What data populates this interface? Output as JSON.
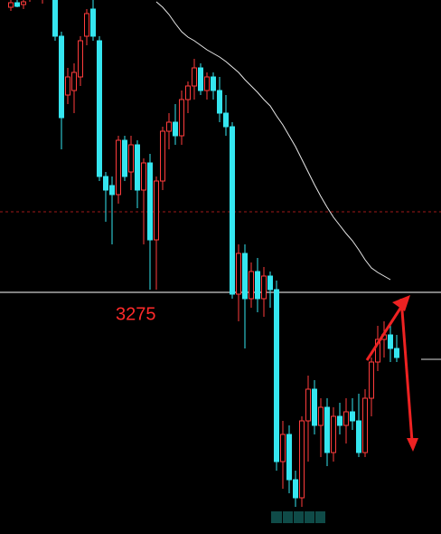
{
  "chart_data": {
    "type": "candlestick",
    "ylim": [
      3008,
      3598
    ],
    "up_color": "#ff3c3c",
    "down_color": "#35e6f0",
    "ma_color": "#e8e8e8",
    "reference_lines": [
      3275
    ],
    "reference_color": "#ffffff",
    "reference_label_color": "#ff2a2a",
    "dashed_level": 3364,
    "dashed_color": "#a01818",
    "ohlc": [
      [
        3590,
        3598,
        3586,
        3595
      ],
      [
        3595,
        3598,
        3590,
        3591
      ],
      [
        3593,
        3598,
        3588,
        3596
      ],
      [
        3603,
        3613,
        3596,
        3610
      ],
      [
        3610,
        3618,
        3600,
        3602
      ],
      [
        3602,
        3612,
        3594,
        3608
      ],
      [
        3608,
        3616,
        3598,
        3600
      ],
      [
        3600,
        3606,
        3553,
        3558
      ],
      [
        3558,
        3563,
        3433,
        3468
      ],
      [
        3493,
        3523,
        3483,
        3513
      ],
      [
        3498,
        3528,
        3473,
        3518
      ],
      [
        3513,
        3558,
        3503,
        3553
      ],
      [
        3558,
        3588,
        3548,
        3583
      ],
      [
        3588,
        3598,
        3553,
        3558
      ],
      [
        3553,
        3558,
        3398,
        3403
      ],
      [
        3403,
        3408,
        3353,
        3388
      ],
      [
        3393,
        3403,
        3328,
        3383
      ],
      [
        3383,
        3448,
        3373,
        3443
      ],
      [
        3443,
        3448,
        3398,
        3403
      ],
      [
        3408,
        3448,
        3388,
        3438
      ],
      [
        3438,
        3443,
        3368,
        3388
      ],
      [
        3388,
        3423,
        3328,
        3418
      ],
      [
        3418,
        3428,
        3278,
        3333
      ],
      [
        3333,
        3403,
        3278,
        3398
      ],
      [
        3398,
        3458,
        3388,
        3453
      ],
      [
        3453,
        3473,
        3433,
        3463
      ],
      [
        3463,
        3483,
        3438,
        3448
      ],
      [
        3448,
        3498,
        3438,
        3488
      ],
      [
        3488,
        3508,
        3473,
        3503
      ],
      [
        3503,
        3533,
        3488,
        3523
      ],
      [
        3523,
        3528,
        3493,
        3498
      ],
      [
        3498,
        3518,
        3488,
        3513
      ],
      [
        3513,
        3518,
        3488,
        3498
      ],
      [
        3498,
        3513,
        3463,
        3473
      ],
      [
        3473,
        3493,
        3448,
        3458
      ],
      [
        3458,
        3463,
        3268,
        3273
      ],
      [
        3273,
        3328,
        3243,
        3318
      ],
      [
        3318,
        3328,
        3213,
        3268
      ],
      [
        3268,
        3308,
        3258,
        3298
      ],
      [
        3298,
        3313,
        3253,
        3268
      ],
      [
        3268,
        3303,
        3248,
        3293
      ],
      [
        3293,
        3298,
        3258,
        3278
      ],
      [
        3278,
        3288,
        3078,
        3088
      ],
      [
        3088,
        3133,
        3058,
        3118
      ],
      [
        3118,
        3128,
        3053,
        3068
      ],
      [
        3068,
        3078,
        3038,
        3048
      ],
      [
        3048,
        3138,
        3038,
        3133
      ],
      [
        3133,
        3183,
        3088,
        3168
      ],
      [
        3168,
        3178,
        3118,
        3128
      ],
      [
        3128,
        3158,
        3093,
        3148
      ],
      [
        3148,
        3158,
        3083,
        3098
      ],
      [
        3098,
        3148,
        3088,
        3138
      ],
      [
        3138,
        3153,
        3118,
        3128
      ],
      [
        3128,
        3158,
        3108,
        3143
      ],
      [
        3143,
        3158,
        3123,
        3133
      ],
      [
        3133,
        3163,
        3093,
        3098
      ],
      [
        3098,
        3168,
        3093,
        3158
      ],
      [
        3158,
        3203,
        3138,
        3198
      ],
      [
        3198,
        3238,
        3188,
        3223
      ],
      [
        3223,
        3243,
        3203,
        3228
      ],
      [
        3228,
        3238,
        3198,
        3213
      ],
      [
        3213,
        3228,
        3198,
        3203
      ]
    ],
    "ma": [
      null,
      null,
      null,
      null,
      null,
      null,
      null,
      null,
      null,
      null,
      null,
      null,
      null,
      null,
      null,
      null,
      null,
      null,
      null,
      null,
      null,
      null,
      null,
      3596,
      3590,
      3582,
      3572,
      3563,
      3557,
      3553,
      3548,
      3543,
      3539,
      3535,
      3530,
      3524,
      3518,
      3510,
      3503,
      3496,
      3488,
      3481,
      3470,
      3460,
      3448,
      3436,
      3422,
      3408,
      3394,
      3381,
      3369,
      3358,
      3349,
      3340,
      3332,
      3322,
      3311,
      3302,
      3297,
      3293,
      3289,
      null
    ]
  }
}
